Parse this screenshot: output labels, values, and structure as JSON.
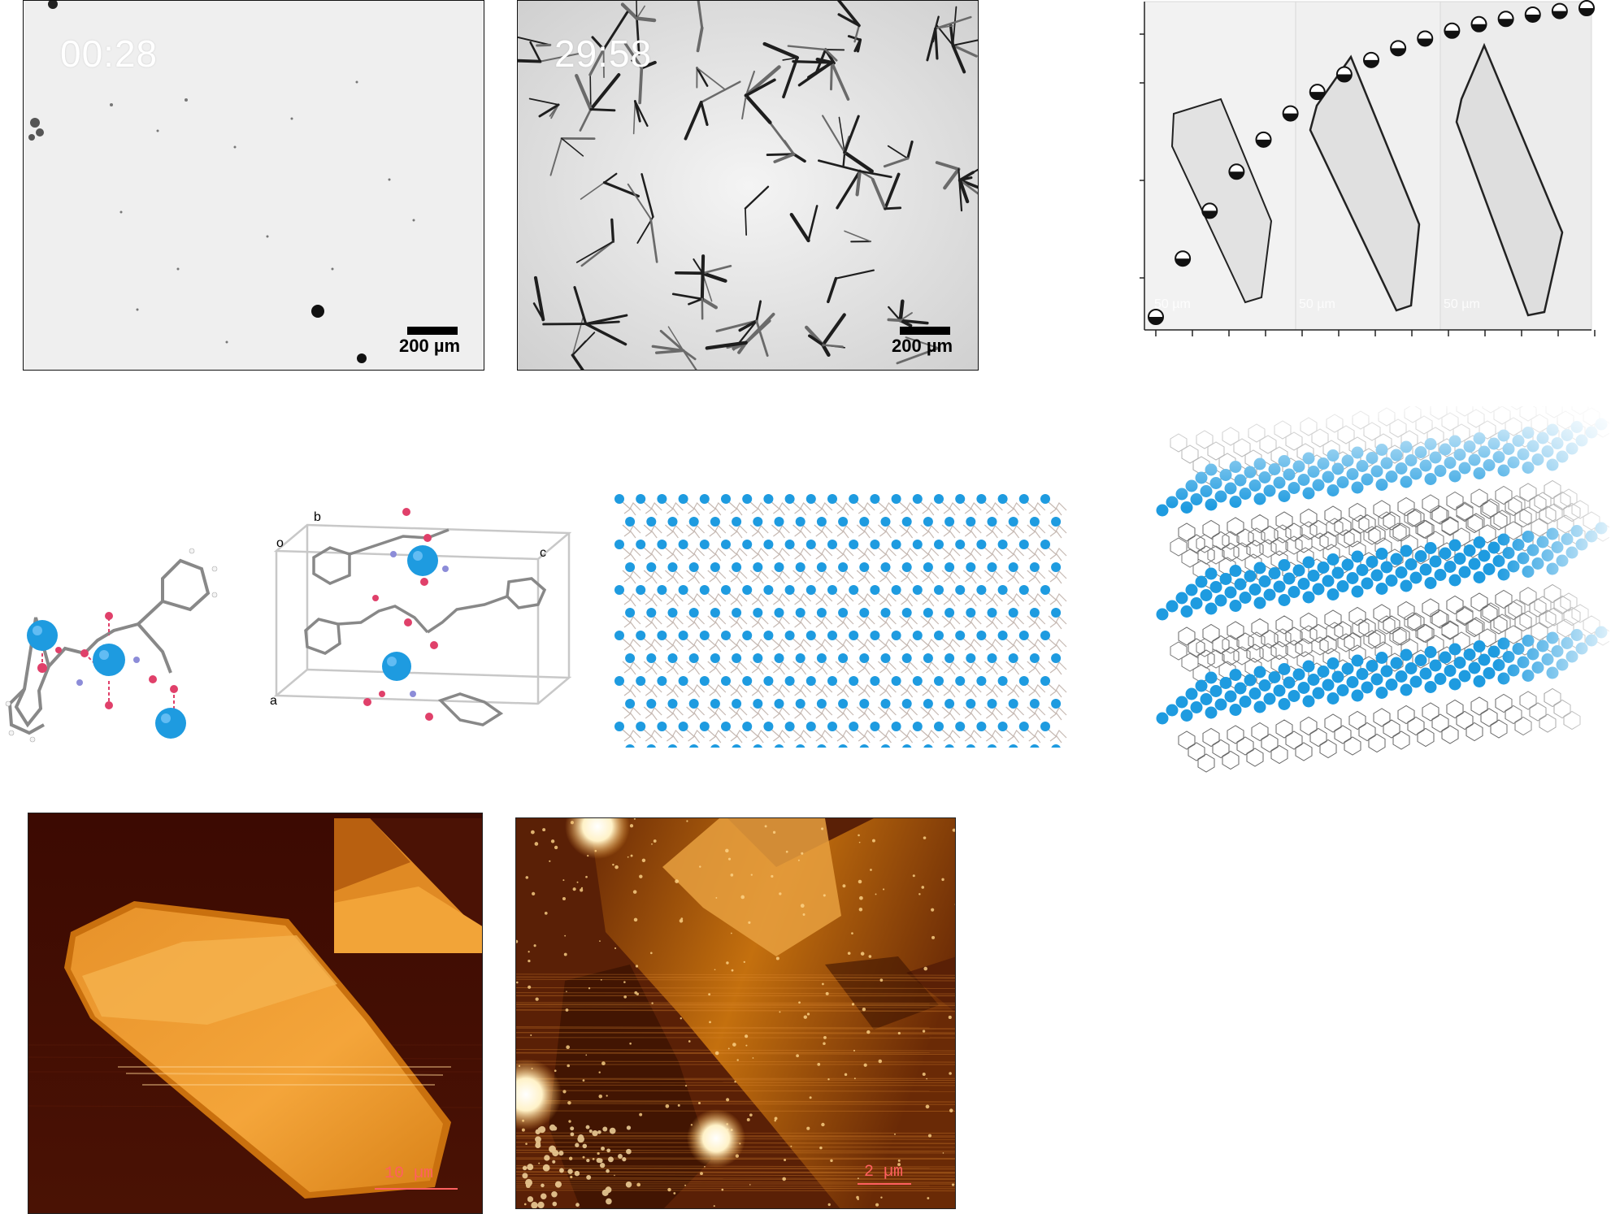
{
  "micrographs": [
    {
      "timestamp": "00:28",
      "scale_label": "200 µm"
    },
    {
      "timestamp": "29:58",
      "scale_label": "200 µm"
    }
  ],
  "growth": {
    "inset_scale_labels": [
      "50 µm",
      "50 µm",
      "50 µm"
    ],
    "marker_count": 17
  },
  "structure": {
    "cell_labels": {
      "o": "o",
      "a": "a",
      "b": "b",
      "c": "c"
    }
  },
  "afm": [
    {
      "scale_label": "10 µm"
    },
    {
      "scale_label": "2 µm"
    }
  ],
  "colors": {
    "metal": "#1e9be0",
    "oxygen": "#e0406a",
    "nitrogen": "#8c8cd8",
    "carbon": "#777777",
    "afm_dark": "#3a0a02",
    "afm_light": "#ffb03a"
  }
}
